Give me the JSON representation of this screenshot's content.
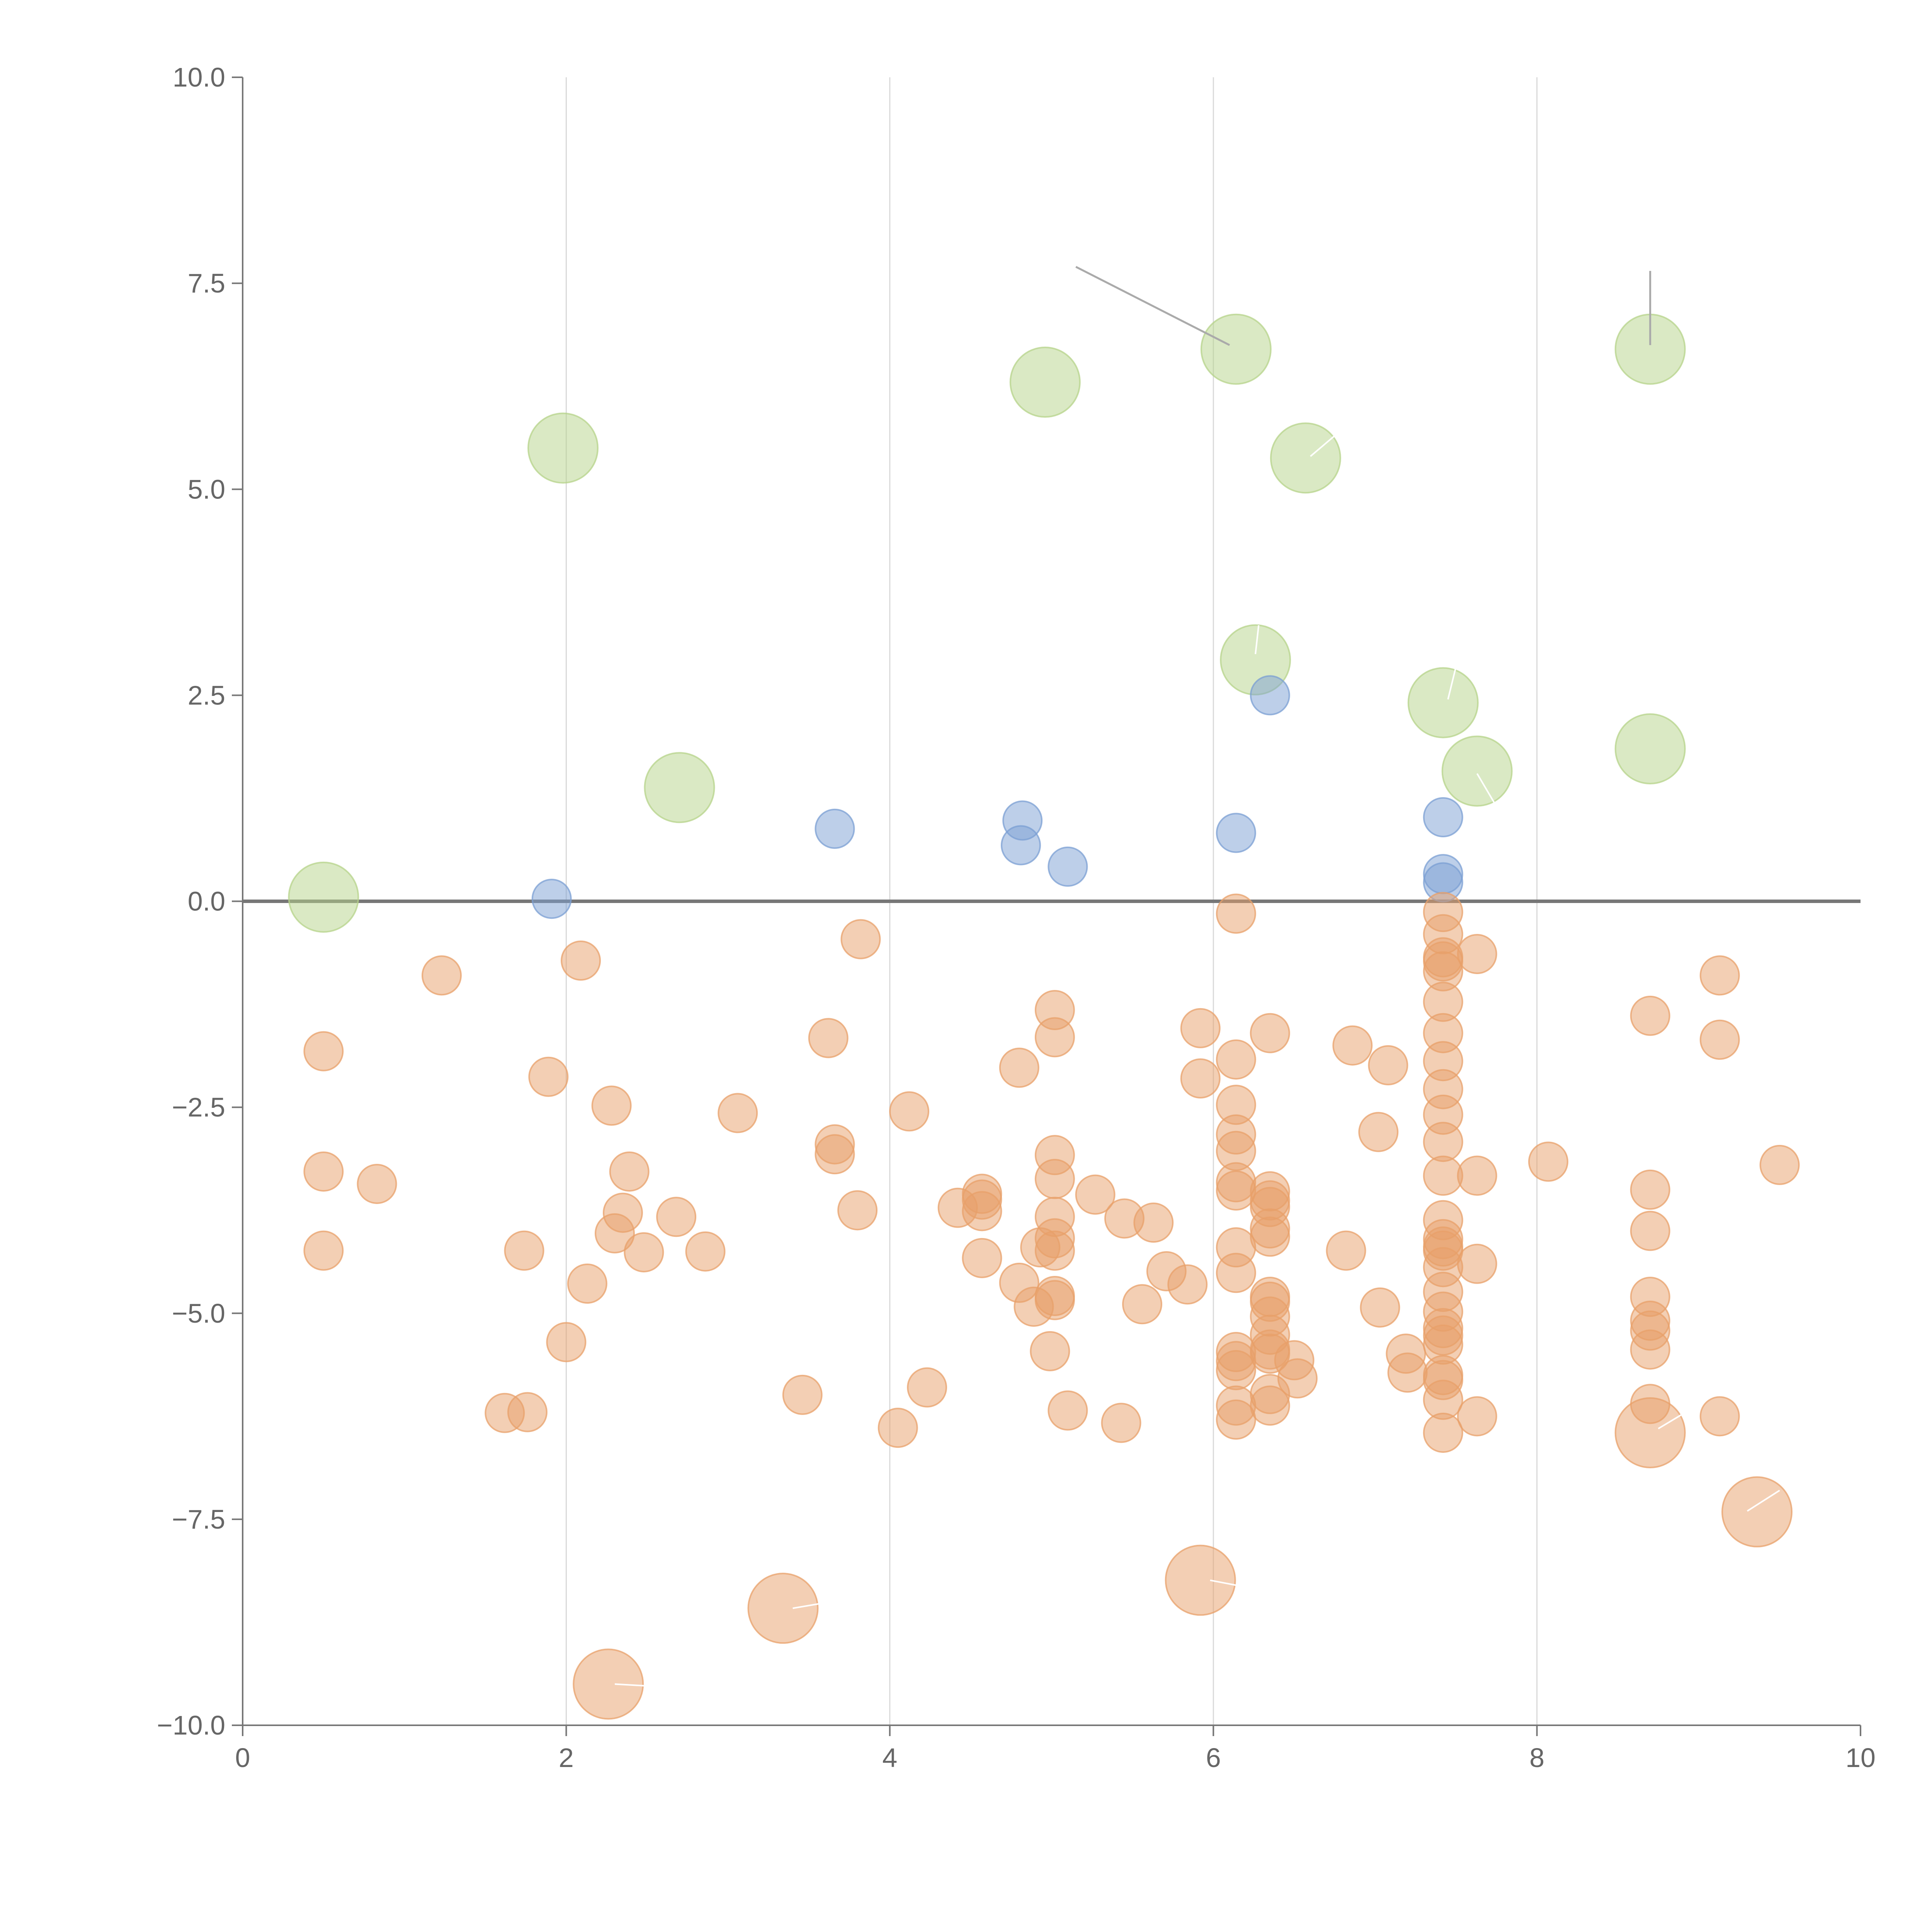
{
  "chart_data": {
    "type": "scatter",
    "title": "",
    "xlabel": "",
    "ylabel": "",
    "xlim": [
      0,
      10
    ],
    "ylim": [
      -10,
      10
    ],
    "x_ticks": [
      0,
      2,
      4,
      6,
      8,
      10
    ],
    "x_tick_labels": [
      "0",
      "2",
      "4",
      "6",
      "8",
      "10"
    ],
    "y_ticks": [
      10,
      7.5,
      5,
      2.5,
      0,
      -2.5,
      -5,
      -7.5,
      -10
    ],
    "y_tick_labels": [
      "10.0",
      "7.5",
      "5.0",
      "2.5",
      "0.0",
      "−2.5",
      "−5.0",
      "−7.5",
      "−10.0"
    ],
    "grid": "vertical",
    "reference_line_y": 0,
    "colors": {
      "green": "#b5d38a",
      "blue": "#7b9fd3",
      "orange": "#e8a06a",
      "grid": "#d9d9d9",
      "axis": "#777777",
      "text": "#666666"
    },
    "series": [
      {
        "name": "green",
        "color": "#b5d38a",
        "size": "large",
        "points": [
          [
            0.5,
            0.05
          ],
          [
            1.98,
            5.5
          ],
          [
            2.7,
            1.38
          ],
          [
            4.96,
            6.3
          ],
          [
            6.14,
            6.7
          ],
          [
            6.57,
            5.38
          ],
          [
            6.26,
            2.93
          ],
          [
            7.42,
            2.41
          ],
          [
            7.63,
            1.58
          ],
          [
            8.7,
            6.7
          ],
          [
            8.7,
            1.85
          ]
        ]
      },
      {
        "name": "blue",
        "color": "#7b9fd3",
        "size": "small",
        "points": [
          [
            1.91,
            0.03
          ],
          [
            3.66,
            0.88
          ],
          [
            4.82,
            0.98
          ],
          [
            4.81,
            0.68
          ],
          [
            5.1,
            0.42
          ],
          [
            6.14,
            0.83
          ],
          [
            6.35,
            2.5
          ],
          [
            7.42,
            1.02
          ],
          [
            7.42,
            0.33
          ],
          [
            7.42,
            0.23
          ]
        ]
      },
      {
        "name": "orange",
        "color": "#e8a06a",
        "size": "small",
        "points": [
          [
            0.5,
            -1.82
          ],
          [
            0.5,
            -3.28
          ],
          [
            0.5,
            -4.24
          ],
          [
            0.83,
            -3.43
          ],
          [
            1.23,
            -0.9
          ],
          [
            1.62,
            -6.21
          ],
          [
            1.76,
            -6.2
          ],
          [
            1.74,
            -4.24
          ],
          [
            1.89,
            -2.13
          ],
          [
            2.0,
            -5.35
          ],
          [
            2.09,
            -0.72
          ],
          [
            2.13,
            -4.64
          ],
          [
            2.28,
            -2.48
          ],
          [
            2.3,
            -4.03
          ],
          [
            2.35,
            -3.78
          ],
          [
            2.39,
            -3.28
          ],
          [
            2.48,
            -4.26
          ],
          [
            2.68,
            -3.83
          ],
          [
            2.86,
            -4.25
          ],
          [
            3.06,
            -2.57
          ],
          [
            3.62,
            -1.66
          ],
          [
            3.46,
            -5.99
          ],
          [
            3.66,
            -2.95
          ],
          [
            3.66,
            -3.07
          ],
          [
            3.8,
            -3.75
          ],
          [
            3.82,
            -0.46
          ],
          [
            4.05,
            -6.39
          ],
          [
            4.12,
            -2.55
          ],
          [
            4.23,
            -5.9
          ],
          [
            4.42,
            -3.72
          ],
          [
            4.57,
            -3.55
          ],
          [
            4.57,
            -3.62
          ],
          [
            4.57,
            -3.76
          ],
          [
            4.57,
            -4.33
          ],
          [
            4.8,
            -2.02
          ],
          [
            4.8,
            -4.63
          ],
          [
            4.89,
            -4.92
          ],
          [
            4.93,
            -4.2
          ],
          [
            4.99,
            -5.46
          ],
          [
            5.02,
            -1.32
          ],
          [
            5.02,
            -1.65
          ],
          [
            5.02,
            -3.08
          ],
          [
            5.02,
            -3.37
          ],
          [
            5.02,
            -3.83
          ],
          [
            5.02,
            -4.09
          ],
          [
            5.02,
            -4.24
          ],
          [
            5.02,
            -4.79
          ],
          [
            5.02,
            -4.84
          ],
          [
            5.1,
            -6.18
          ],
          [
            5.27,
            -3.56
          ],
          [
            5.43,
            -6.33
          ],
          [
            5.45,
            -3.85
          ],
          [
            5.56,
            -4.89
          ],
          [
            5.63,
            -3.9
          ],
          [
            5.71,
            -4.49
          ],
          [
            5.84,
            -4.65
          ],
          [
            5.92,
            -1.54
          ],
          [
            5.92,
            -2.15
          ],
          [
            6.14,
            -0.15
          ],
          [
            6.14,
            -1.92
          ],
          [
            6.14,
            -2.47
          ],
          [
            6.14,
            -2.83
          ],
          [
            6.14,
            -3.03
          ],
          [
            6.14,
            -3.41
          ],
          [
            6.14,
            -3.51
          ],
          [
            6.14,
            -4.2
          ],
          [
            6.14,
            -4.51
          ],
          [
            6.14,
            -5.47
          ],
          [
            6.14,
            -5.58
          ],
          [
            6.14,
            -5.69
          ],
          [
            6.14,
            -6.12
          ],
          [
            6.14,
            -6.29
          ],
          [
            6.35,
            -1.6
          ],
          [
            6.35,
            -3.52
          ],
          [
            6.35,
            -3.63
          ],
          [
            6.35,
            -3.71
          ],
          [
            6.35,
            -3.97
          ],
          [
            6.35,
            -4.07
          ],
          [
            6.35,
            -4.8
          ],
          [
            6.35,
            -4.86
          ],
          [
            6.35,
            -5.04
          ],
          [
            6.35,
            -5.26
          ],
          [
            6.35,
            -5.44
          ],
          [
            6.35,
            -5.49
          ],
          [
            6.35,
            -5.98
          ],
          [
            6.35,
            -6.12
          ],
          [
            6.5,
            -5.57
          ],
          [
            6.52,
            -5.79
          ],
          [
            6.82,
            -4.24
          ],
          [
            6.86,
            -1.75
          ],
          [
            7.02,
            -2.8
          ],
          [
            7.03,
            -4.93
          ],
          [
            7.08,
            -1.99
          ],
          [
            7.19,
            -5.49
          ],
          [
            7.2,
            -5.72
          ],
          [
            7.42,
            -0.13
          ],
          [
            7.42,
            -0.4
          ],
          [
            7.42,
            -0.68
          ],
          [
            7.42,
            -0.73
          ],
          [
            7.42,
            -0.85
          ],
          [
            7.42,
            -1.22
          ],
          [
            7.42,
            -1.6
          ],
          [
            7.42,
            -1.94
          ],
          [
            7.42,
            -2.28
          ],
          [
            7.42,
            -2.59
          ],
          [
            7.42,
            -2.92
          ],
          [
            7.42,
            -3.33
          ],
          [
            7.42,
            -3.87
          ],
          [
            7.42,
            -4.1
          ],
          [
            7.42,
            -4.19
          ],
          [
            7.42,
            -4.24
          ],
          [
            7.42,
            -4.44
          ],
          [
            7.42,
            -4.74
          ],
          [
            7.42,
            -4.98
          ],
          [
            7.42,
            -5.18
          ],
          [
            7.42,
            -5.27
          ],
          [
            7.42,
            -5.38
          ],
          [
            7.42,
            -5.75
          ],
          [
            7.42,
            -5.81
          ],
          [
            7.42,
            -6.05
          ],
          [
            7.42,
            -6.45
          ],
          [
            7.63,
            -0.64
          ],
          [
            7.63,
            -3.33
          ],
          [
            7.63,
            -4.4
          ],
          [
            7.63,
            -6.25
          ],
          [
            8.07,
            -3.16
          ],
          [
            8.7,
            -1.39
          ],
          [
            8.7,
            -3.5
          ],
          [
            8.7,
            -4.0
          ],
          [
            8.7,
            -4.8
          ],
          [
            8.7,
            -5.09
          ],
          [
            8.7,
            -5.21
          ],
          [
            8.7,
            -5.44
          ],
          [
            8.7,
            -6.1
          ],
          [
            9.13,
            -0.9
          ],
          [
            9.13,
            -1.68
          ],
          [
            9.13,
            -6.25
          ],
          [
            9.5,
            -3.2
          ]
        ]
      },
      {
        "name": "orange-large",
        "color": "#e8a06a",
        "size": "large",
        "points": [
          [
            2.26,
            -9.5
          ],
          [
            3.34,
            -8.58
          ],
          [
            5.92,
            -8.24
          ],
          [
            8.7,
            -6.45
          ],
          [
            9.36,
            -7.41
          ]
        ]
      }
    ],
    "annotations": [
      {
        "x1": 5.15,
        "y1": 7.7,
        "x2": 6.1,
        "y2": 6.75,
        "color": "#aaaaaa"
      },
      {
        "x1": 8.7,
        "y1": 7.65,
        "x2": 8.7,
        "y2": 6.75,
        "color": "#aaaaaa"
      },
      {
        "x1": 6.6,
        "y1": 5.4,
        "x2": 6.75,
        "y2": 5.65,
        "color": "#ffffff"
      },
      {
        "x1": 6.26,
        "y1": 3.0,
        "x2": 6.28,
        "y2": 3.35,
        "color": "#ffffff"
      },
      {
        "x1": 7.45,
        "y1": 2.45,
        "x2": 7.5,
        "y2": 2.85,
        "color": "#ffffff"
      },
      {
        "x1": 7.63,
        "y1": 1.55,
        "x2": 7.75,
        "y2": 1.15,
        "color": "#ffffff"
      },
      {
        "x1": 8.75,
        "y1": -6.4,
        "x2": 8.92,
        "y2": -6.2,
        "color": "#ffffff"
      },
      {
        "x1": 9.3,
        "y1": -7.4,
        "x2": 9.5,
        "y2": -7.15,
        "color": "#ffffff"
      },
      {
        "x1": 5.98,
        "y1": -8.24,
        "x2": 6.14,
        "y2": -8.3,
        "color": "#ffffff"
      },
      {
        "x1": 3.4,
        "y1": -8.58,
        "x2": 3.58,
        "y2": -8.52,
        "color": "#ffffff"
      },
      {
        "x1": 2.3,
        "y1": -9.5,
        "x2": 2.48,
        "y2": -9.52,
        "color": "#ffffff"
      }
    ]
  }
}
